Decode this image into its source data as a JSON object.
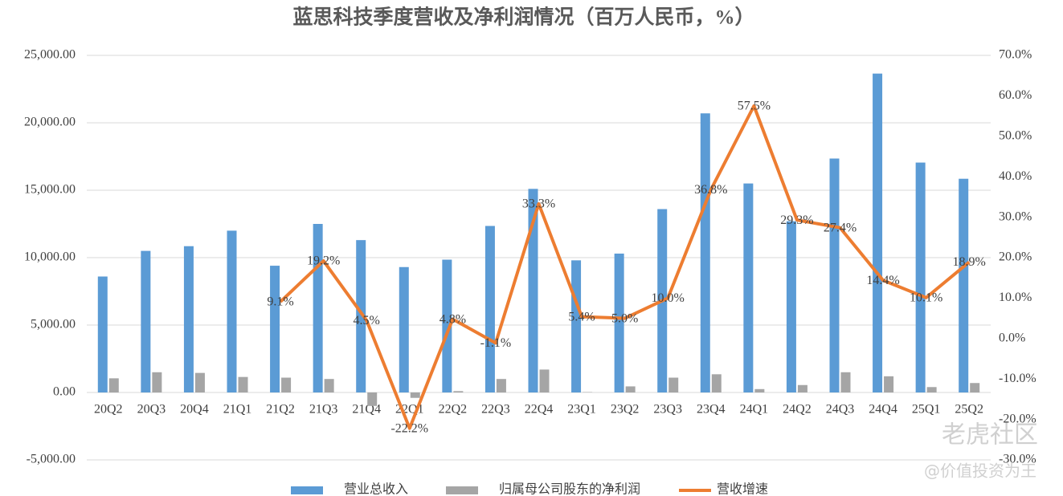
{
  "chart_data": {
    "type": "bar_line",
    "title": "蓝思科技季度营收及净利润情况（百万人民币，%）",
    "categories": [
      "20Q2",
      "20Q3",
      "20Q4",
      "21Q1",
      "21Q2",
      "21Q3",
      "21Q4",
      "22Q1",
      "22Q2",
      "22Q3",
      "22Q4",
      "23Q1",
      "23Q2",
      "23Q3",
      "23Q4",
      "24Q1",
      "24Q2",
      "24Q3",
      "24Q4",
      "25Q1",
      "25Q2"
    ],
    "series": [
      {
        "name": "营业总收入",
        "type": "bar",
        "color": "#5b9bd5",
        "values": [
          8600,
          10500,
          10850,
          12000,
          9400,
          12500,
          11300,
          9300,
          9850,
          12350,
          15100,
          9800,
          10300,
          13600,
          20700,
          15500,
          12700,
          17350,
          23650,
          17050,
          15850
        ]
      },
      {
        "name": "归属母公司股东的净利润",
        "type": "bar",
        "color": "#a5a5a5",
        "values": [
          1050,
          1500,
          1450,
          1150,
          1100,
          1000,
          -1000,
          -400,
          100,
          1000,
          1700,
          30,
          450,
          1100,
          1350,
          250,
          550,
          1500,
          1200,
          400,
          700
        ]
      },
      {
        "name": "营收增速",
        "type": "line",
        "axis": "y2",
        "color": "#ed7d31",
        "values": [
          null,
          null,
          null,
          null,
          9.1,
          19.2,
          4.5,
          -22.2,
          4.8,
          -1.1,
          33.3,
          5.4,
          5.0,
          10.0,
          36.8,
          57.5,
          29.3,
          27.4,
          14.4,
          10.1,
          18.9
        ],
        "value_labels": [
          null,
          null,
          null,
          null,
          "9.1%",
          "19.2%",
          "4.5%",
          "-22.2%",
          "4.8%",
          "-1.1%",
          "33.3%",
          "5.4%",
          "5.0%",
          "10.0%",
          "36.8%",
          "57.5%",
          "29.3%",
          "27.4%",
          "14.4%",
          "10.1%",
          "18.9%"
        ]
      }
    ],
    "ylim": [
      -5000,
      25000
    ],
    "yticks": [
      {
        "value": -5000,
        "label": "-5,000.00"
      },
      {
        "value": 0,
        "label": "0.00"
      },
      {
        "value": 5000,
        "label": "5,000.00"
      },
      {
        "value": 10000,
        "label": "10,000.00"
      },
      {
        "value": 15000,
        "label": "15,000.00"
      },
      {
        "value": 20000,
        "label": "20,000.00"
      },
      {
        "value": 25000,
        "label": "25,000.00"
      }
    ],
    "y2lim": [
      -30,
      70
    ],
    "y2ticks": [
      {
        "value": -30,
        "label": "-30.0%"
      },
      {
        "value": -20,
        "label": "-20.0%"
      },
      {
        "value": -10,
        "label": "-10.0%"
      },
      {
        "value": 0,
        "label": "0.0%"
      },
      {
        "value": 10,
        "label": "10.0%"
      },
      {
        "value": 20,
        "label": "20.0%"
      },
      {
        "value": 30,
        "label": "30.0%"
      },
      {
        "value": 40,
        "label": "40.0%"
      },
      {
        "value": 50,
        "label": "50.0%"
      },
      {
        "value": 60,
        "label": "60.0%"
      },
      {
        "value": 70,
        "label": "70.0%"
      }
    ],
    "grid": true,
    "legend": "bottom",
    "annotations": [
      "老虎社区",
      "@价值投资为王"
    ]
  }
}
